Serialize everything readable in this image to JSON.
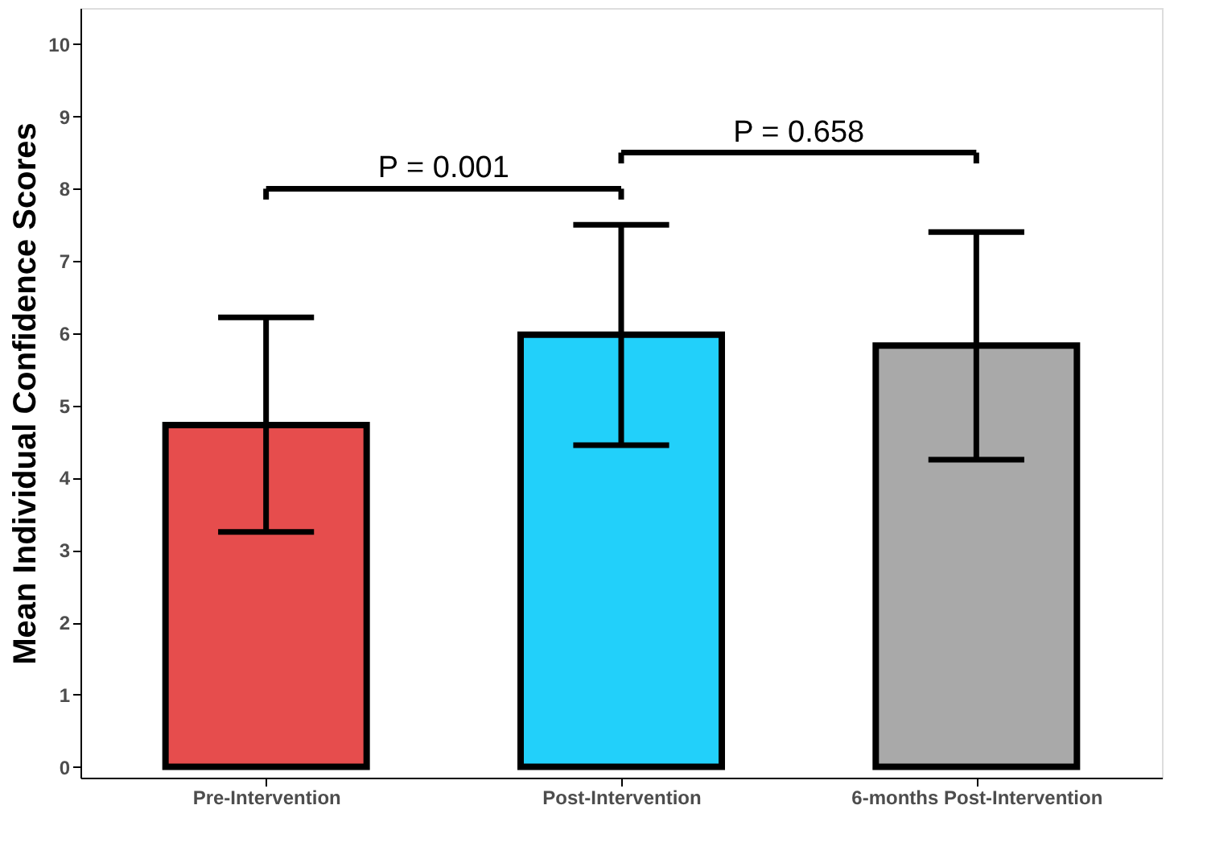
{
  "chart_data": {
    "type": "bar",
    "ylabel": "Mean Individual Confidence Scores",
    "categories": [
      "Pre-Intervention",
      "Post-Intervention",
      "6-months Post-Intervention"
    ],
    "values": [
      4.73,
      5.98,
      5.83
    ],
    "colors": [
      "#e64d4d",
      "#22d0fa",
      "#a9a9a9"
    ],
    "errors": [
      [
        3.25,
        6.22
      ],
      [
        4.45,
        7.5
      ],
      [
        4.25,
        7.4
      ]
    ],
    "annotations": [
      "P = 0.001",
      "P = 0.658"
    ],
    "ylim": [
      -0.15,
      10.5
    ],
    "yticks": [
      0,
      1,
      2,
      3,
      4,
      5,
      6,
      7,
      8,
      9,
      10
    ],
    "grid": false
  }
}
